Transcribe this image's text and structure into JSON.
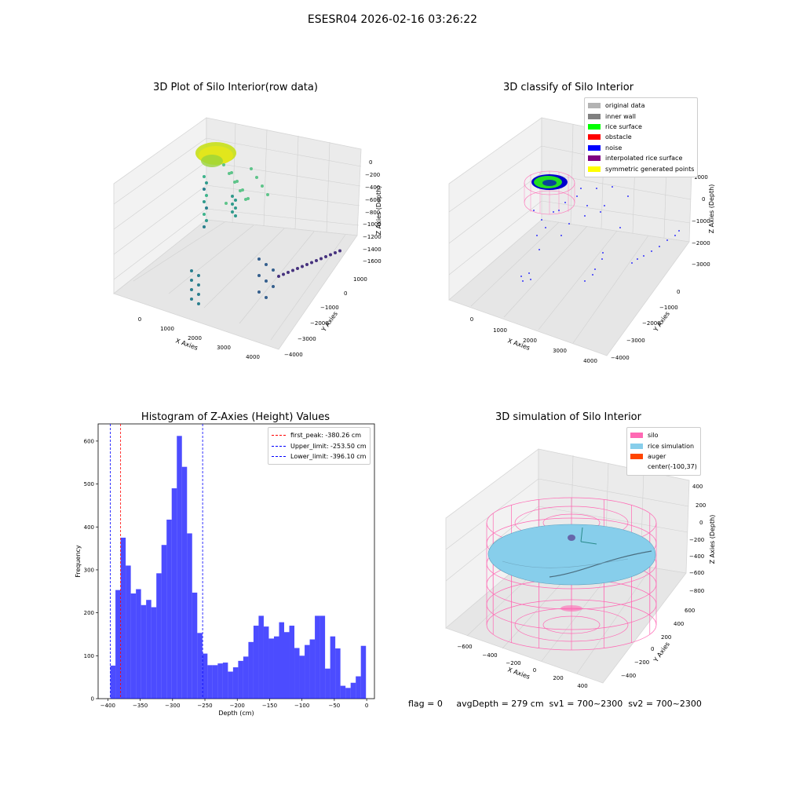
{
  "suptitle": "ESESR04 2026-02-16 03:26:22",
  "panels": {
    "raw": {
      "title": "3D Plot of Silo Interior(row data)",
      "xlabel": "X Axies",
      "ylabel": "Y Axies",
      "zlabel": "Z Axies (Depth)",
      "xticks": [
        "0",
        "1000",
        "2000",
        "3000",
        "4000"
      ],
      "yticks": [
        "1000",
        "0",
        "−1000",
        "−2000",
        "−3000",
        "−4000"
      ],
      "zticks": [
        "0",
        "−200",
        "−400",
        "−600",
        "−800",
        "−1000",
        "−1200",
        "−1400",
        "−1600"
      ]
    },
    "classify": {
      "title": "3D classify of Silo Interior",
      "xlabel": "X Axies",
      "ylabel": "Y Axies",
      "zlabel": "Z Axies (Depth)",
      "xticks": [
        "0",
        "1000",
        "2000",
        "3000",
        "4000"
      ],
      "yticks": [
        "0",
        "−1000",
        "−2000",
        "−3000",
        "−4000"
      ],
      "zticks": [
        "1000",
        "0",
        "−1000",
        "−2000",
        "−3000"
      ],
      "legend": [
        {
          "label": "original data",
          "color": "#b3b3b3"
        },
        {
          "label": "inner wall",
          "color": "#808080"
        },
        {
          "label": "rice surface",
          "color": "#00ff00"
        },
        {
          "label": "obstacle",
          "color": "#ff0000"
        },
        {
          "label": "noise",
          "color": "#0000ff"
        },
        {
          "label": "interpolated rice surface",
          "color": "#800080"
        },
        {
          "label": "symmetric generated points",
          "color": "#ffff00"
        }
      ]
    },
    "simulation": {
      "title": "3D simulation of Silo Interior",
      "xlabel": "X Axies",
      "ylabel": "Y Axies",
      "zlabel": "Z Axies (Depth)",
      "xticks": [
        "−600",
        "−400",
        "−200",
        "0",
        "200",
        "400"
      ],
      "yticks": [
        "600",
        "400",
        "200",
        "0",
        "−200",
        "−400"
      ],
      "zticks": [
        "400",
        "200",
        "0",
        "−200",
        "−400",
        "−600",
        "−800"
      ],
      "legend": [
        {
          "label": "silo",
          "color": "#ff69b4"
        },
        {
          "label": "rice simulation",
          "color": "#87ceeb"
        },
        {
          "label": "auger",
          "color": "#ff4500"
        },
        {
          "label": "center(-100,37)",
          "color": ""
        }
      ]
    }
  },
  "footer": "flag = 0     avgDepth = 279 cm  sv1 = 700~2300  sv2 = 700~2300",
  "chart_data": {
    "type": "bar",
    "title": "Histogram of Z-Axies (Height) Values",
    "xlabel": "Depth (cm)",
    "ylabel": "Frequency",
    "xlim": [
      -415,
      12
    ],
    "ylim": [
      0,
      640
    ],
    "bar_color": "#0000ff",
    "bar_alpha": 0.7,
    "bin_start": -396.1,
    "bin_width": 7.9,
    "values": [
      77,
      253,
      375,
      310,
      245,
      255,
      218,
      230,
      213,
      292,
      358,
      417,
      490,
      612,
      540,
      385,
      247,
      153,
      105,
      78,
      78,
      82,
      84,
      63,
      73,
      88,
      98,
      132,
      170,
      193,
      168,
      140,
      145,
      178,
      155,
      170,
      118,
      100,
      125,
      138,
      193,
      193,
      70,
      145,
      117,
      30,
      25,
      37,
      52,
      123
    ],
    "xticks": [
      -400,
      -350,
      -300,
      -250,
      -200,
      -150,
      -100,
      -50,
      0
    ],
    "yticks": [
      0,
      100,
      200,
      300,
      400,
      500,
      600
    ],
    "vlines": [
      {
        "label": "first_peak: -380.26 cm",
        "x": -380.26,
        "color": "#ff0000"
      },
      {
        "label": "Upper_limit: -253.50 cm",
        "x": -253.5,
        "color": "#0000ff"
      },
      {
        "label": "Lower_limit: -396.10 cm",
        "x": -396.1,
        "color": "#0000ff"
      }
    ]
  }
}
